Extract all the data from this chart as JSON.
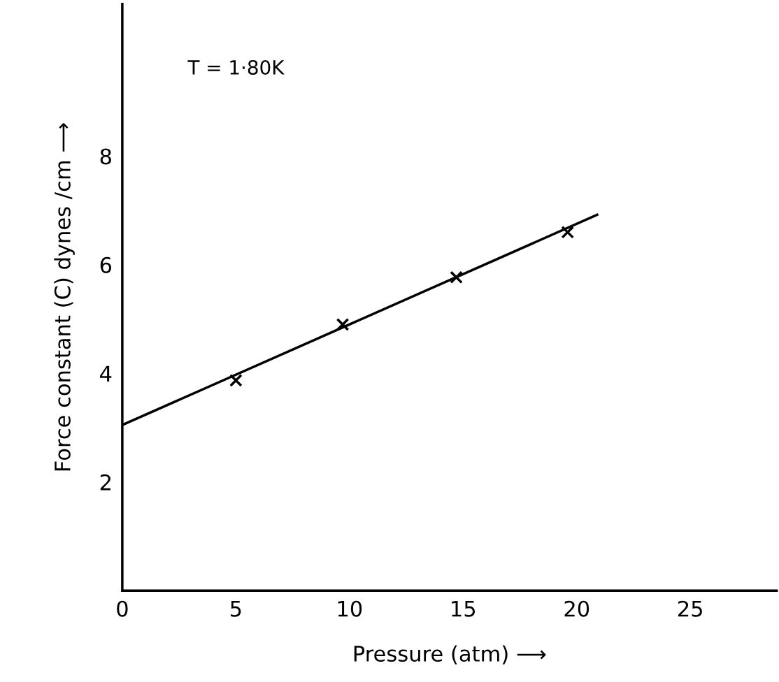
{
  "chart_data": {
    "type": "scatter",
    "xlabel": "Pressure (atm) ⟶",
    "ylabel": "Force constant (C) dynes /cm ⟶",
    "annotations": [
      "T = 1·80K"
    ],
    "x": [
      5,
      9.7,
      14.7,
      19.6
    ],
    "series": [
      {
        "color": "#000000",
        "marker": "cross",
        "values": [
          3.87,
          4.9,
          5.77,
          6.6
        ]
      },
      {
        "type": "line",
        "color": "#000000",
        "marker": "none",
        "line_style": "solid",
        "x": [
          0,
          20.9
        ],
        "values": [
          3.05,
          6.92
        ]
      }
    ],
    "xlim": [
      0,
      28.8
    ],
    "ylim": [
      0,
      10.8
    ],
    "xticks": [
      0,
      5,
      10,
      15,
      20,
      25
    ],
    "yticks": [
      2,
      4,
      6,
      8
    ],
    "grid": false,
    "legend": false
  }
}
